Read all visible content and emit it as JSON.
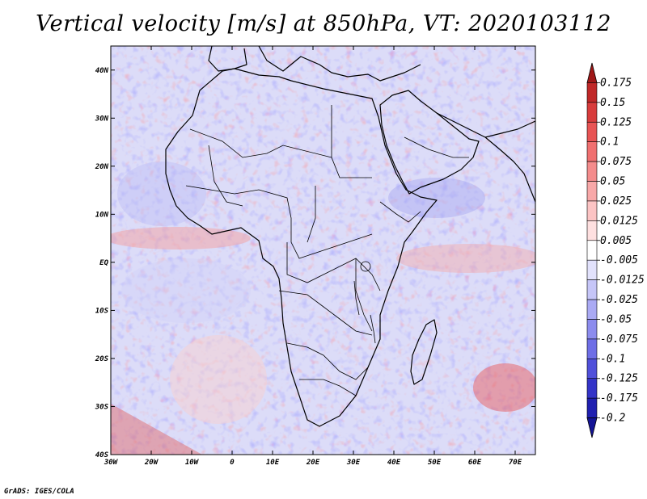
{
  "title": "Vertical velocity [m/s] at 850hPa, VT: 2020103112",
  "credit": "GrADS: IGES/COLA",
  "map": {
    "lon_range": [
      -30,
      75
    ],
    "lat_range": [
      -40,
      45
    ],
    "lon_ticks": [
      {
        "value": -30,
        "label": "30W"
      },
      {
        "value": -20,
        "label": "20W"
      },
      {
        "value": -10,
        "label": "10W"
      },
      {
        "value": 0,
        "label": "0"
      },
      {
        "value": 10,
        "label": "10E"
      },
      {
        "value": 20,
        "label": "20E"
      },
      {
        "value": 30,
        "label": "30E"
      },
      {
        "value": 40,
        "label": "40E"
      },
      {
        "value": 50,
        "label": "50E"
      },
      {
        "value": 60,
        "label": "60E"
      },
      {
        "value": 70,
        "label": "70E"
      }
    ],
    "lat_ticks": [
      {
        "value": 40,
        "label": "40N"
      },
      {
        "value": 30,
        "label": "30N"
      },
      {
        "value": 20,
        "label": "20N"
      },
      {
        "value": 10,
        "label": "10N"
      },
      {
        "value": 0,
        "label": "EQ"
      },
      {
        "value": -10,
        "label": "10S"
      },
      {
        "value": -20,
        "label": "20S"
      },
      {
        "value": -30,
        "label": "30S"
      },
      {
        "value": -40,
        "label": "40S"
      }
    ]
  },
  "colorbar": {
    "levels": [
      "0.175",
      "0.15",
      "0.125",
      "0.1",
      "0.075",
      "0.05",
      "0.025",
      "0.0125",
      "0.005",
      "-0.005",
      "-0.0125",
      "-0.025",
      "-0.05",
      "-0.075",
      "-0.1",
      "-0.125",
      "-0.175",
      "-0.2"
    ],
    "colors": [
      "#a01818",
      "#c02828",
      "#d83c3c",
      "#e85454",
      "#f07070",
      "#f48c8c",
      "#f8a8a8",
      "#fcc4c4",
      "#fee0e0",
      "#ffffff",
      "#e2e2fc",
      "#c6c6f8",
      "#aaaaf4",
      "#8c8cee",
      "#6e6ee6",
      "#5050da",
      "#3434c8",
      "#2020b0",
      "#141496"
    ]
  }
}
